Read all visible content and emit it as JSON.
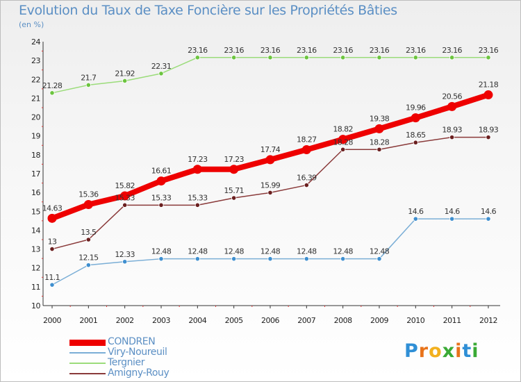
{
  "header": {
    "title": "Evolution du Taux de Taxe Foncière sur les Propriétés Bâties",
    "unit": "(en %)"
  },
  "logo": {
    "letters": [
      "P",
      "r",
      "o",
      "x",
      "i",
      "t",
      "i"
    ],
    "colors": [
      "#2f8fd6",
      "#e8731a",
      "#f2b01e",
      "#3aaa35",
      "#e8731a",
      "#2f8fd6",
      "#3aaa35"
    ]
  },
  "chart_data": {
    "type": "line",
    "title": "Evolution du Taux de Taxe Foncière sur les Propriétés Bâties",
    "ylabel": "(en %)",
    "xlabel": "",
    "categories": [
      "2000",
      "2001",
      "2002",
      "2003",
      "2004",
      "2005",
      "2006",
      "2007",
      "2008",
      "2009",
      "2010",
      "2011",
      "2012"
    ],
    "ylim": [
      10,
      24
    ],
    "yticks": [
      "10",
      "11",
      "12",
      "13",
      "14",
      "15",
      "16",
      "17",
      "18",
      "19",
      "20",
      "21",
      "22",
      "23",
      "24"
    ],
    "grid": false,
    "legend_position": "bottom-left",
    "series": [
      {
        "name": "CONDREN",
        "color": "#ee0000",
        "marker": "#ee0000",
        "emphasis": true,
        "values": [
          14.63,
          15.36,
          15.82,
          16.61,
          17.23,
          17.23,
          17.74,
          18.27,
          18.82,
          19.38,
          19.96,
          20.56,
          21.18
        ],
        "labels": [
          "14.63",
          "15.36",
          "15.82",
          "16.61",
          "17.23",
          "17.23",
          "17.74",
          "18.27",
          "18.82",
          "19.38",
          "19.96",
          "20.56",
          "21.18"
        ]
      },
      {
        "name": "Viry-Noureuil",
        "color": "#7aaed6",
        "marker": "#3f8fcf",
        "emphasis": false,
        "values": [
          11.1,
          12.15,
          12.33,
          12.48,
          12.48,
          12.48,
          12.48,
          12.48,
          12.48,
          12.48,
          14.6,
          14.6,
          14.6
        ],
        "labels": [
          "11.1",
          "12.15",
          "12.33",
          "12.48",
          "12.48",
          "12.48",
          "12.48",
          "12.48",
          "12.48",
          "12.48",
          "14.6",
          "14.6",
          "14.6"
        ]
      },
      {
        "name": "Tergnier",
        "color": "#9bdc7a",
        "marker": "#6cc43f",
        "emphasis": false,
        "values": [
          21.28,
          21.7,
          21.92,
          22.31,
          23.16,
          23.16,
          23.16,
          23.16,
          23.16,
          23.16,
          23.16,
          23.16,
          23.16
        ],
        "labels": [
          "21.28",
          "21.7",
          "21.92",
          "22.31",
          "23.16",
          "23.16",
          "23.16",
          "23.16",
          "23.16",
          "23.16",
          "23.16",
          "23.16",
          "23.16"
        ]
      },
      {
        "name": "Amigny-Rouy",
        "color": "#8a3a3a",
        "marker": "#6a1f1f",
        "emphasis": false,
        "values": [
          13,
          13.5,
          15.33,
          15.33,
          15.33,
          15.71,
          15.99,
          16.39,
          18.28,
          18.28,
          18.65,
          18.93,
          18.93
        ],
        "labels": [
          "13",
          "13.5",
          "15.33",
          "15.33",
          "15.33",
          "15.71",
          "15.99",
          "16.39",
          "18.28",
          "18.28",
          "18.65",
          "18.93",
          "18.93"
        ]
      }
    ]
  }
}
